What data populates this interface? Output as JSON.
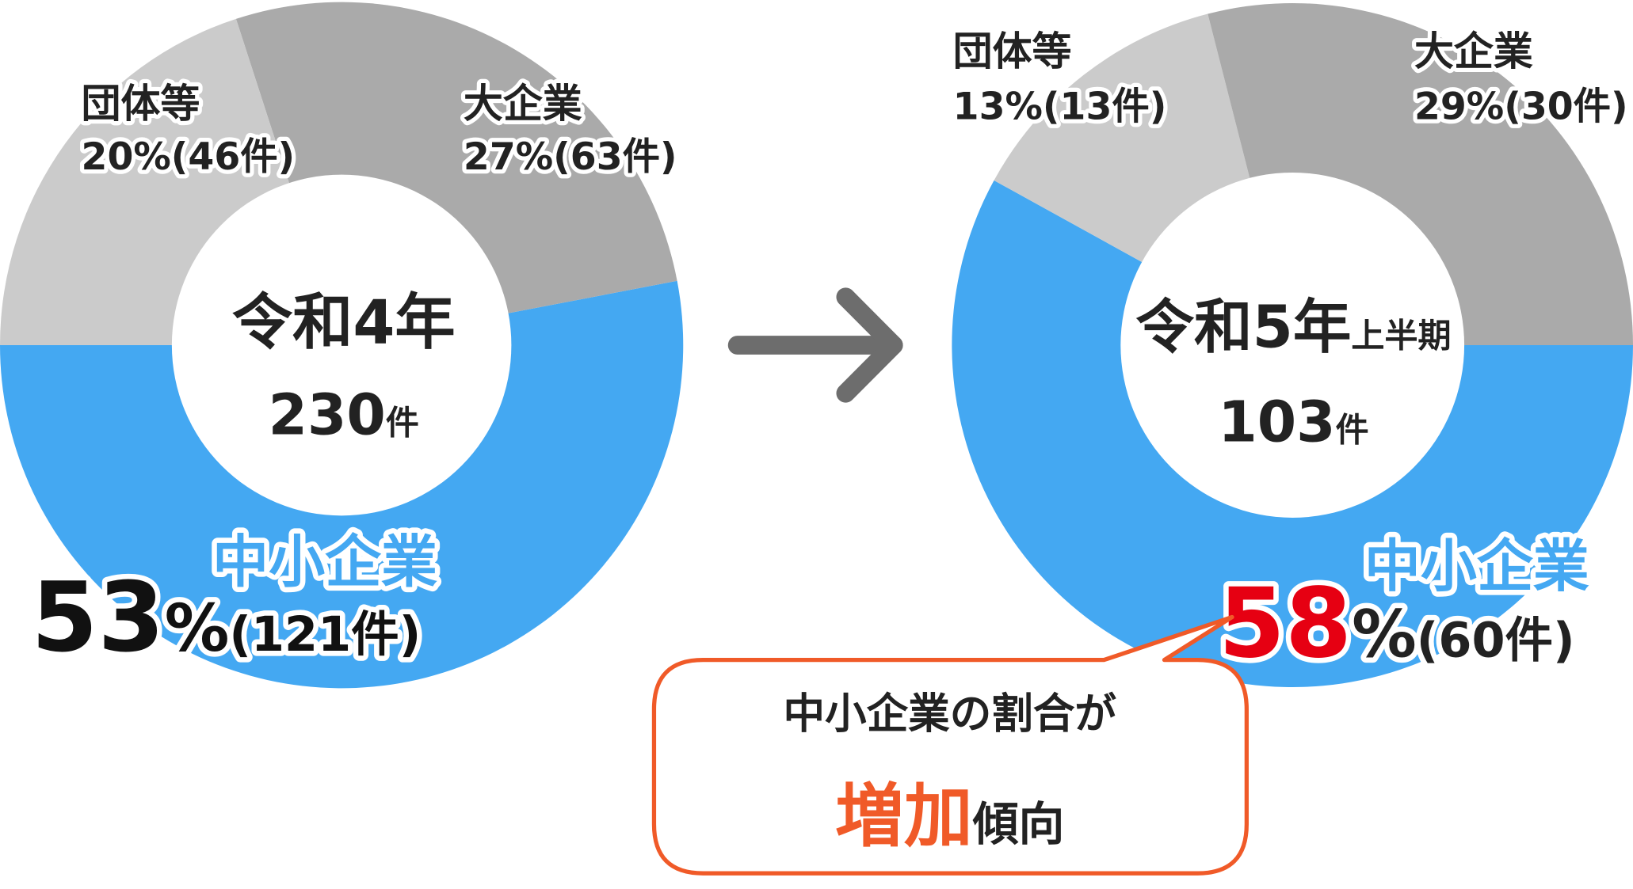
{
  "colors": {
    "sme": "#44a8f2",
    "large": "#aaaaaa",
    "org": "#cbcbcb",
    "highlight": "#e60012",
    "callout": "#f05a28",
    "arrow": "#6d6d6d",
    "text": "#222222"
  },
  "chart_data": [
    {
      "type": "pie",
      "title": "令和4年",
      "title_suffix": "",
      "total": "230",
      "total_unit": "件",
      "slices": [
        {
          "name": "中小企業",
          "percent": 53,
          "count": 121,
          "pct_label": "53",
          "pct_sign": "%",
          "count_label": "(121件)"
        },
        {
          "name": "大企業",
          "percent": 27,
          "count": 63,
          "label": "27%(63件)"
        },
        {
          "name": "団体等",
          "percent": 20,
          "count": 46,
          "label": "20%(46件)"
        }
      ]
    },
    {
      "type": "pie",
      "title": "令和5年",
      "title_suffix": "上半期",
      "total": "103",
      "total_unit": "件",
      "slices": [
        {
          "name": "中小企業",
          "percent": 58,
          "count": 60,
          "pct_label": "58",
          "pct_sign": "%",
          "count_label": "(60件)"
        },
        {
          "name": "団体等",
          "percent": 13,
          "count": 13,
          "label": "13%(13件)"
        },
        {
          "name": "大企業",
          "percent": 29,
          "count": 30,
          "label": "29%(30件)"
        }
      ]
    }
  ],
  "callout": {
    "line1": "中小企業の割合が",
    "emphasis": "増加",
    "rest": "傾向"
  }
}
